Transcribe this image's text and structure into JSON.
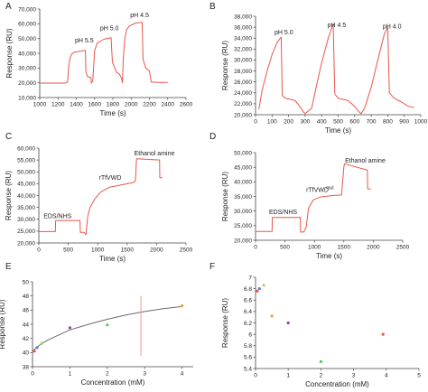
{
  "chart_data": [
    {
      "panel": "A",
      "type": "line",
      "xlabel": "Time (s)",
      "ylabel": "Response (RU)",
      "xlim": [
        1000,
        2600
      ],
      "ylim": [
        10000,
        70000
      ],
      "xticks": [
        1000,
        1200,
        1400,
        1600,
        1800,
        2000,
        2200,
        2400,
        2600
      ],
      "yticks": [
        10000,
        20000,
        30000,
        40000,
        50000,
        60000,
        70000
      ],
      "xtick_labels": [
        "1000",
        "1200",
        "1400",
        "1600",
        "1800",
        "2000",
        "2200",
        "2400",
        "2600"
      ],
      "ytick_labels": [
        "10,000",
        "20,000",
        "30,000",
        "40,000",
        "50,000",
        "60,000",
        "70,000"
      ],
      "color": "#e8564a",
      "annotations": [
        {
          "text": "pH 5.5",
          "x": 1385,
          "y": 47500
        },
        {
          "text": "pH 5.0",
          "x": 1660,
          "y": 55500
        },
        {
          "text": "pH 4.5",
          "x": 1990,
          "y": 64500
        }
      ],
      "x": [
        1000,
        1280,
        1305,
        1315,
        1330,
        1350,
        1380,
        1450,
        1500,
        1505,
        1520,
        1530,
        1545,
        1560,
        1565,
        1580,
        1600,
        1630,
        1700,
        1780,
        1795,
        1840,
        1870,
        1895,
        1905,
        1915,
        1930,
        1950,
        1980,
        2050,
        2120,
        2130,
        2160,
        2200,
        2220,
        2300,
        2400
      ],
      "y": [
        19800,
        19800,
        20500,
        30000,
        36500,
        39500,
        40800,
        41500,
        42000,
        27500,
        24500,
        24000,
        23800,
        23600,
        19800,
        21000,
        42000,
        47000,
        49500,
        50500,
        34000,
        27000,
        26000,
        23000,
        20000,
        37000,
        50000,
        56000,
        58500,
        60500,
        61000,
        36000,
        30000,
        28000,
        20500,
        20300,
        20200
      ]
    },
    {
      "panel": "B",
      "type": "line",
      "xlabel": "Time (s)",
      "ylabel": "Response (RU)",
      "xlim": [
        0,
        1000
      ],
      "ylim": [
        20000,
        38000
      ],
      "xticks": [
        0,
        100,
        200,
        300,
        400,
        500,
        600,
        700,
        800,
        900,
        1000
      ],
      "yticks": [
        20000,
        22000,
        24000,
        26000,
        28000,
        30000,
        32000,
        34000,
        36000,
        38000
      ],
      "xtick_labels": [
        "0",
        "100",
        "200",
        "300",
        "400",
        "500",
        "600",
        "700",
        "800",
        "900",
        "1000"
      ],
      "ytick_labels": [
        "20,000",
        "22,000",
        "24,000",
        "26,000",
        "28,000",
        "30,000",
        "32,000",
        "34,000",
        "36,000",
        "38,000"
      ],
      "color": "#e8564a",
      "annotations": [
        {
          "text": "pH 5.0",
          "x": 115,
          "y": 34700
        },
        {
          "text": "pH 4.5",
          "x": 435,
          "y": 36000
        },
        {
          "text": "pH 4.0",
          "x": 770,
          "y": 35800
        }
      ],
      "x": [
        20,
        40,
        70,
        100,
        130,
        155,
        162,
        180,
        240,
        275,
        290,
        300,
        340,
        365,
        400,
        440,
        470,
        480,
        500,
        560,
        600,
        630,
        640,
        660,
        700,
        740,
        780,
        800,
        810,
        840,
        880,
        920,
        960
      ],
      "y": [
        21000,
        24500,
        28000,
        31000,
        33200,
        34200,
        23500,
        23000,
        22600,
        21200,
        20500,
        20200,
        21200,
        24800,
        29500,
        34000,
        36600,
        23800,
        23000,
        22600,
        21500,
        20400,
        20200,
        21200,
        25000,
        30000,
        34800,
        36000,
        24000,
        23000,
        22400,
        21600,
        21300
      ]
    },
    {
      "panel": "C",
      "type": "line",
      "xlabel": "Time (s)",
      "ylabel": "Response (RU)",
      "xlim": [
        0,
        2500
      ],
      "ylim": [
        20000,
        60000
      ],
      "xticks": [
        0,
        500,
        1000,
        1500,
        2000,
        2500
      ],
      "yticks": [
        20000,
        25000,
        30000,
        35000,
        40000,
        45000,
        50000,
        55000,
        60000
      ],
      "xtick_labels": [
        "0",
        "500",
        "1000",
        "1500",
        "2000",
        "2500"
      ],
      "ytick_labels": [
        "20,000",
        "25,000",
        "30,000",
        "35,000",
        "40,000",
        "45,000",
        "50,000",
        "55,000",
        "60,000"
      ],
      "color": "#e8564a",
      "annotations": [
        {
          "text": "EDS/NHS",
          "x": 80,
          "y": 30400
        },
        {
          "text": "rTfVWD",
          "x": 1020,
          "y": 46700
        },
        {
          "text": "Ethanol amine",
          "x": 1620,
          "y": 57000
        }
      ],
      "x": [
        0,
        280,
        285,
        700,
        705,
        770,
        800,
        830,
        870,
        950,
        1050,
        1200,
        1400,
        1600,
        1640,
        1660,
        2050,
        2055,
        2100
      ],
      "y": [
        24800,
        24800,
        29500,
        29500,
        24500,
        24500,
        23500,
        31000,
        35000,
        38500,
        41500,
        43500,
        44500,
        45500,
        46000,
        55500,
        55000,
        47500,
        47500
      ]
    },
    {
      "panel": "D",
      "type": "line",
      "xlabel": "Time (s)",
      "ylabel": "Response (RU)",
      "xlim": [
        0,
        2500
      ],
      "ylim": [
        20000,
        50000
      ],
      "xticks": [
        0,
        500,
        1000,
        1500,
        2000,
        2500
      ],
      "yticks": [
        20000,
        25000,
        30000,
        35000,
        40000,
        45000,
        50000
      ],
      "xtick_labels": [
        "0",
        "500",
        "1000",
        "1500",
        "2000",
        "2500"
      ],
      "ytick_labels": [
        "20,000",
        "25,000",
        "30,000",
        "35,000",
        "40,000",
        "45,000",
        "50,000"
      ],
      "color": "#e8564a",
      "annotations": [
        {
          "text": "EDS/NHS",
          "x": 230,
          "y": 29000
        },
        {
          "text": "rTfVWD",
          "sup": "mut",
          "x": 860,
          "y": 36600
        },
        {
          "text": "Ethanol amine",
          "x": 1520,
          "y": 46600
        }
      ],
      "x": [
        0,
        280,
        285,
        760,
        765,
        820,
        860,
        900,
        980,
        1100,
        1300,
        1460,
        1500,
        1510,
        1900,
        1905,
        1960
      ],
      "y": [
        23000,
        23000,
        27800,
        27800,
        22800,
        22800,
        24500,
        31000,
        33800,
        34800,
        35300,
        35500,
        45000,
        46200,
        44000,
        37600,
        37600
      ]
    },
    {
      "panel": "E",
      "type": "scatter",
      "xlabel": "Concentration (mM)",
      "ylabel": "Response (RU)",
      "xlim": [
        0,
        4.3
      ],
      "ylim": [
        38,
        50
      ],
      "xticks": [
        0,
        1,
        2,
        3,
        4
      ],
      "yticks": [
        38,
        40,
        42,
        44,
        46,
        48,
        50
      ],
      "xtick_labels": [
        "0",
        "1",
        "2",
        "3",
        "4"
      ],
      "ytick_labels": [
        "38",
        "40",
        "42",
        "44",
        "46",
        "48",
        "50"
      ],
      "fit_curve": {
        "x": [
          0,
          0.25,
          0.5,
          1,
          1.5,
          2,
          2.5,
          3,
          3.5,
          4
        ],
        "y": [
          40.2,
          41.3,
          42.0,
          43.2,
          44.0,
          44.7,
          45.3,
          45.8,
          46.2,
          46.5
        ],
        "color": "#6a6a6a"
      },
      "marker": {
        "x": 2.9,
        "y_range": [
          39.5,
          48.0
        ],
        "color": "#f29a8a"
      },
      "points": [
        {
          "x": 0.05,
          "y": 40.2,
          "color": "#e8564a"
        },
        {
          "x": 0.12,
          "y": 40.7,
          "color": "#5a7ed0"
        },
        {
          "x": 0.25,
          "y": 41.3,
          "color": "#a0d070"
        },
        {
          "x": 1.0,
          "y": 43.5,
          "color": "#8a4aa8"
        },
        {
          "x": 2.0,
          "y": 43.9,
          "color": "#5ac85a"
        },
        {
          "x": 4.0,
          "y": 46.6,
          "color": "#f0a030"
        }
      ]
    },
    {
      "panel": "F",
      "type": "scatter",
      "xlabel": "Concentration (mM)",
      "ylabel": "Response (RU)",
      "xlim": [
        0,
        5
      ],
      "ylim": [
        5.4,
        7
      ],
      "xticks": [
        0,
        1,
        2,
        3,
        4,
        5
      ],
      "yticks": [
        5.4,
        5.6,
        5.8,
        6,
        6.2,
        6.4,
        6.6,
        6.8,
        7
      ],
      "xtick_labels": [
        "0",
        "1",
        "2",
        "3",
        "4",
        "5"
      ],
      "ytick_labels": [
        "5.4",
        "5.6",
        "5.8",
        "6",
        "6.2",
        "6.4",
        "6.6",
        "6.8",
        "7"
      ],
      "points": [
        {
          "x": 0.05,
          "y": 6.76,
          "color": "#e8564a"
        },
        {
          "x": 0.12,
          "y": 6.8,
          "color": "#5a7ed0"
        },
        {
          "x": 0.25,
          "y": 6.86,
          "color": "#a0d070"
        },
        {
          "x": 0.5,
          "y": 6.32,
          "color": "#f0a030"
        },
        {
          "x": 1.0,
          "y": 6.2,
          "color": "#8a4aa8"
        },
        {
          "x": 2.0,
          "y": 5.52,
          "color": "#5ac85a"
        },
        {
          "x": 3.9,
          "y": 6.0,
          "color": "#e8564a"
        }
      ]
    }
  ],
  "panels": {
    "A": {
      "letter": "A"
    },
    "B": {
      "letter": "B"
    },
    "C": {
      "letter": "C"
    },
    "D": {
      "letter": "D"
    },
    "E": {
      "letter": "E"
    },
    "F": {
      "letter": "F"
    }
  }
}
